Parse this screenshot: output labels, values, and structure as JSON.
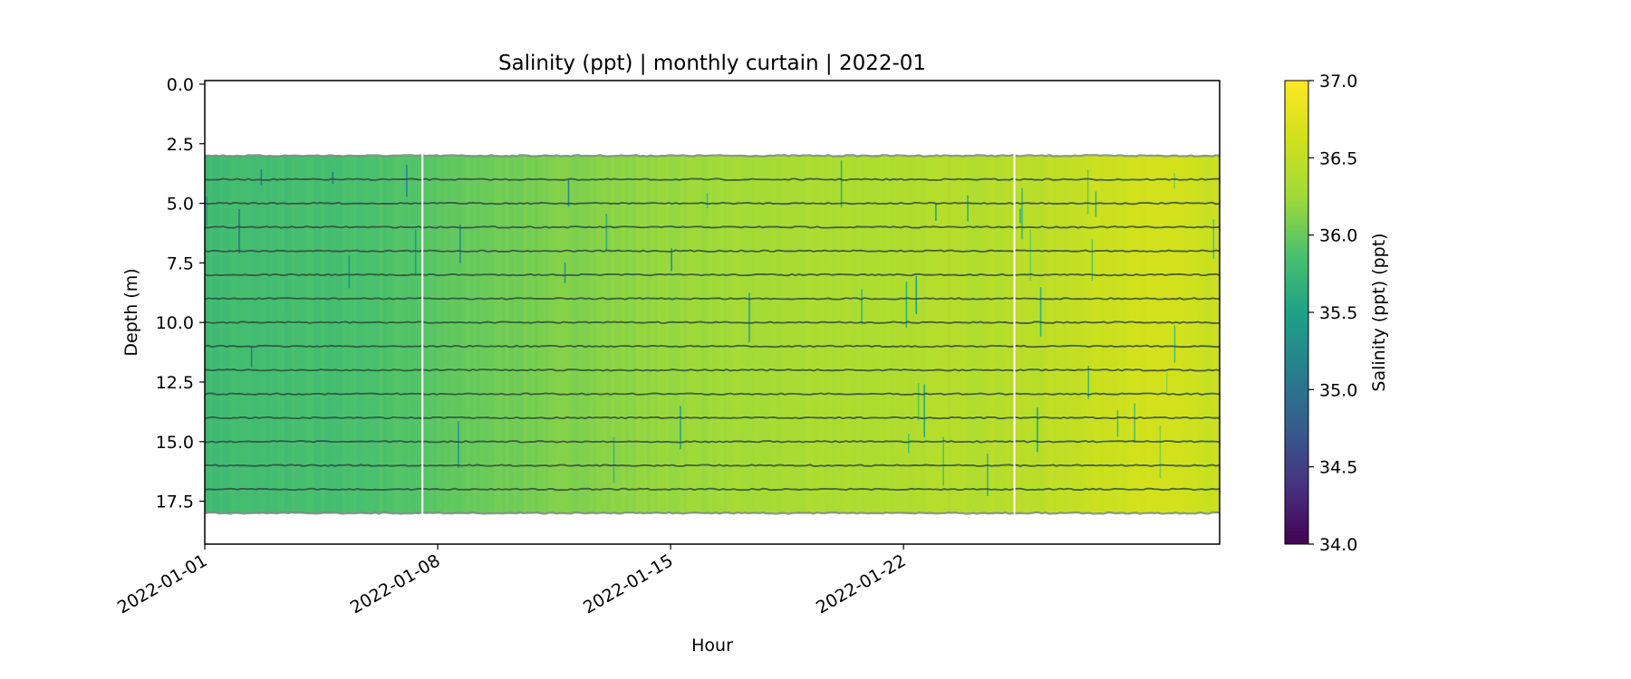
{
  "chart_data": {
    "type": "heatmap",
    "title": "Salinity (ppt) | monthly curtain | 2022-01",
    "xlabel": "Hour",
    "ylabel": "Depth (m)",
    "colorbar_label": "Salinity (ppt) (ppt)",
    "x_range": [
      "2022-01-01",
      "2022-01-31T12:00"
    ],
    "x_ticks": [
      "2022-01-01",
      "2022-01-08",
      "2022-01-15",
      "2022-01-22"
    ],
    "y_range": [
      19.3,
      -0.15
    ],
    "y_ticks": [
      "0.0",
      "2.5",
      "5.0",
      "7.5",
      "10.0",
      "12.5",
      "15.0",
      "17.5"
    ],
    "color_range": [
      34.0,
      37.0
    ],
    "colormap": "viridis",
    "colorbar_ticks": [
      "34.0",
      "34.5",
      "35.0",
      "35.5",
      "36.0",
      "36.5",
      "37.0"
    ],
    "sensor_depths_m": [
      3,
      4,
      5,
      6,
      7,
      8,
      9,
      10,
      11,
      12,
      13,
      14,
      15,
      16,
      17,
      18
    ],
    "data_depth_range_m": [
      3.0,
      18.0
    ],
    "salinity_trend": {
      "dates": [
        "2022-01-01",
        "2022-01-05",
        "2022-01-08",
        "2022-01-10",
        "2022-01-13",
        "2022-01-16",
        "2022-01-20",
        "2022-01-23",
        "2022-01-26",
        "2022-01-28",
        "2022-01-30",
        "2022-01-31"
      ],
      "values": [
        35.8,
        35.85,
        35.95,
        36.05,
        36.15,
        36.25,
        36.35,
        36.4,
        36.45,
        36.6,
        36.65,
        36.55
      ]
    },
    "missing_data_dates": [
      "2022-01-07T13:00",
      "2022-01-25T08:00"
    ],
    "grid": false
  }
}
